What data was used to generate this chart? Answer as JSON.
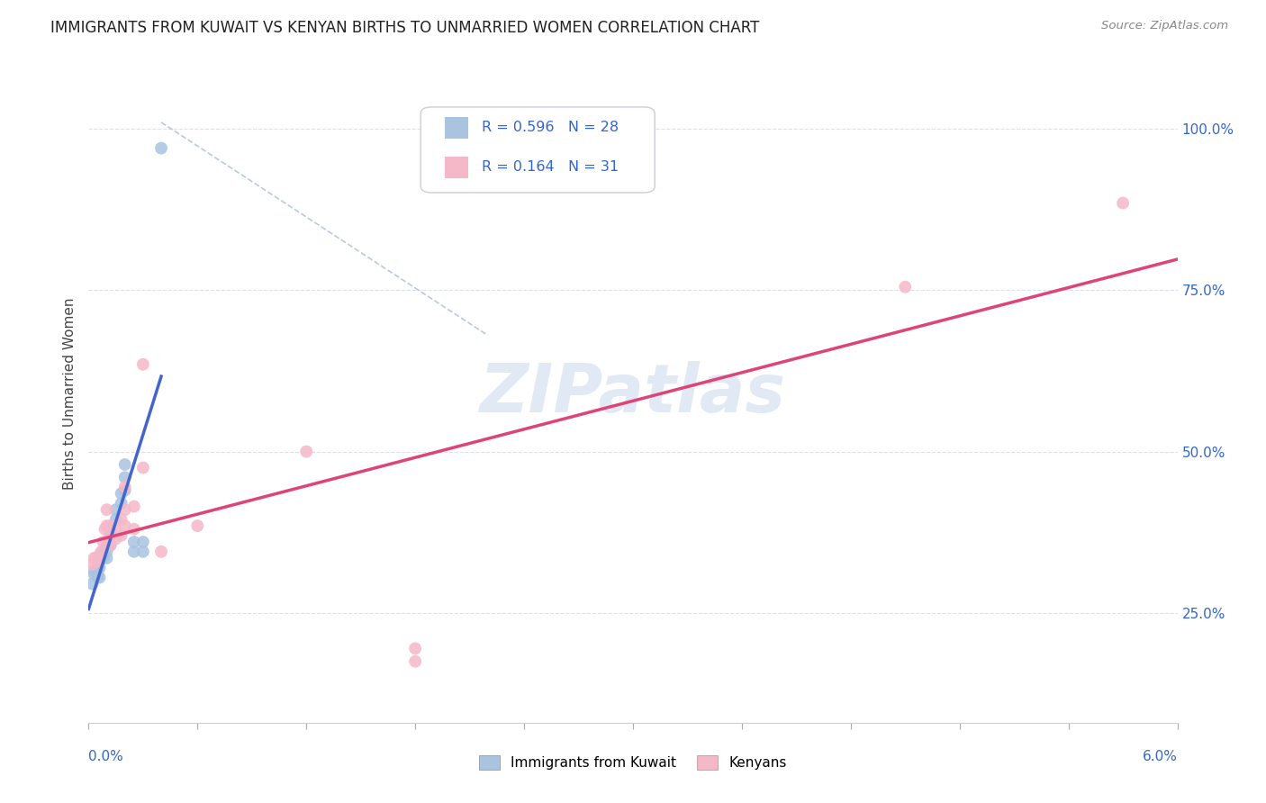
{
  "title": "IMMIGRANTS FROM KUWAIT VS KENYAN BIRTHS TO UNMARRIED WOMEN CORRELATION CHART",
  "source": "Source: ZipAtlas.com",
  "ylabel": "Births to Unmarried Women",
  "yticks": [
    0.25,
    0.5,
    0.75,
    1.0
  ],
  "ytick_labels": [
    "25.0%",
    "50.0%",
    "75.0%",
    "100.0%"
  ],
  "xlim": [
    0.0,
    0.06
  ],
  "ylim": [
    0.08,
    1.1
  ],
  "legend1_r": "0.596",
  "legend1_n": "28",
  "legend2_r": "0.164",
  "legend2_n": "31",
  "blue_color": "#aac4e0",
  "pink_color": "#f5b8c8",
  "blue_line_color": "#4466cc",
  "pink_line_color": "#dd4477",
  "blue_scatter": [
    [
      0.0002,
      0.295
    ],
    [
      0.0003,
      0.31
    ],
    [
      0.0003,
      0.315
    ],
    [
      0.0005,
      0.305
    ],
    [
      0.0005,
      0.31
    ],
    [
      0.0005,
      0.315
    ],
    [
      0.0006,
      0.305
    ],
    [
      0.0006,
      0.32
    ],
    [
      0.0008,
      0.335
    ],
    [
      0.0008,
      0.345
    ],
    [
      0.001,
      0.335
    ],
    [
      0.001,
      0.345
    ],
    [
      0.001,
      0.355
    ],
    [
      0.0012,
      0.355
    ],
    [
      0.0012,
      0.37
    ],
    [
      0.0012,
      0.38
    ],
    [
      0.0015,
      0.395
    ],
    [
      0.0015,
      0.41
    ],
    [
      0.0018,
      0.42
    ],
    [
      0.0018,
      0.435
    ],
    [
      0.002,
      0.44
    ],
    [
      0.002,
      0.46
    ],
    [
      0.002,
      0.48
    ],
    [
      0.0025,
      0.345
    ],
    [
      0.0025,
      0.36
    ],
    [
      0.003,
      0.345
    ],
    [
      0.003,
      0.36
    ],
    [
      0.004,
      0.97
    ]
  ],
  "pink_scatter": [
    [
      0.0002,
      0.325
    ],
    [
      0.0003,
      0.335
    ],
    [
      0.0004,
      0.335
    ],
    [
      0.0005,
      0.33
    ],
    [
      0.0006,
      0.34
    ],
    [
      0.0007,
      0.345
    ],
    [
      0.0008,
      0.36
    ],
    [
      0.0009,
      0.38
    ],
    [
      0.001,
      0.385
    ],
    [
      0.001,
      0.41
    ],
    [
      0.0012,
      0.355
    ],
    [
      0.0012,
      0.37
    ],
    [
      0.0012,
      0.385
    ],
    [
      0.0015,
      0.365
    ],
    [
      0.0015,
      0.38
    ],
    [
      0.0018,
      0.37
    ],
    [
      0.0018,
      0.395
    ],
    [
      0.002,
      0.385
    ],
    [
      0.002,
      0.41
    ],
    [
      0.002,
      0.445
    ],
    [
      0.0025,
      0.38
    ],
    [
      0.0025,
      0.415
    ],
    [
      0.003,
      0.475
    ],
    [
      0.003,
      0.635
    ],
    [
      0.004,
      0.345
    ],
    [
      0.006,
      0.385
    ],
    [
      0.012,
      0.5
    ],
    [
      0.018,
      0.175
    ],
    [
      0.018,
      0.195
    ],
    [
      0.045,
      0.755
    ],
    [
      0.057,
      0.885
    ]
  ],
  "diag_line": [
    [
      0.004,
      1.01
    ],
    [
      0.022,
      0.68
    ]
  ],
  "watermark": "ZIPatlas",
  "background_color": "#ffffff",
  "grid_color": "#dde0e8"
}
